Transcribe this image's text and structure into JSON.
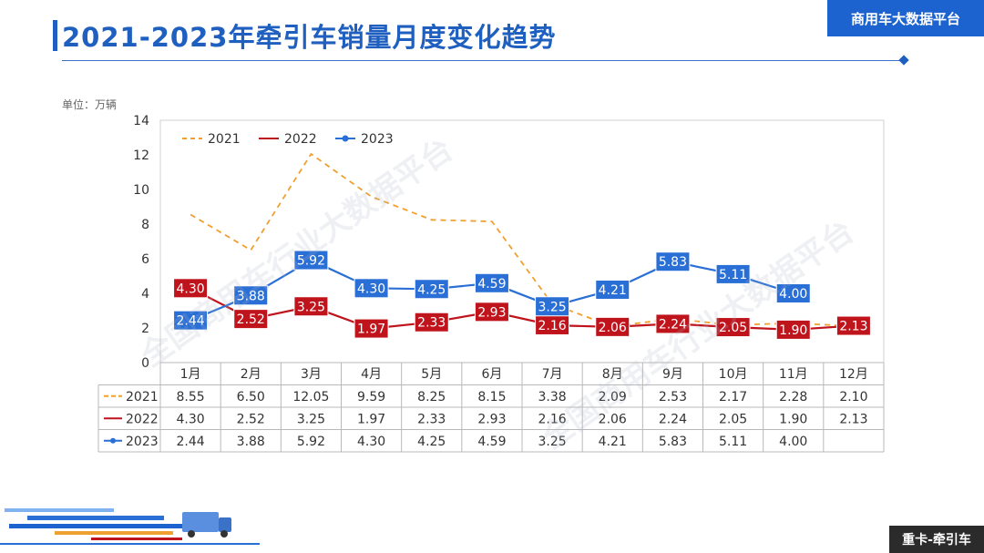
{
  "header": {
    "title": "2021-2023年牵引车销量月度变化趋势",
    "brand": "商用车大数据平台",
    "unit_label": "单位：万辆",
    "footer_tag": "重卡-牵引车",
    "watermark": "全国商用车行业大数据平台"
  },
  "colors": {
    "accent": "#1f5fbf",
    "s2021": "#f0a030",
    "s2022": "#c0141c",
    "s2023": "#2a6fd6"
  },
  "chart_data": {
    "type": "line",
    "title": "2021-2023年牵引车销量月度变化趋势",
    "ylabel": "万辆",
    "ylim": [
      0,
      14
    ],
    "yticks": [
      "0",
      "2",
      "4",
      "6",
      "8",
      "10",
      "12",
      "14"
    ],
    "grid": false,
    "legend": "top-left",
    "categories": [
      "1月",
      "2月",
      "3月",
      "4月",
      "5月",
      "6月",
      "7月",
      "8月",
      "9月",
      "10月",
      "11月",
      "12月"
    ],
    "series": [
      {
        "name": "2021",
        "style": "dashed",
        "labeled": false,
        "values": [
          8.55,
          6.5,
          12.05,
          9.59,
          8.25,
          8.15,
          3.38,
          2.09,
          2.53,
          2.17,
          2.28,
          2.1
        ],
        "table": [
          "8.55",
          "6.50",
          "12.05",
          "9.59",
          "8.25",
          "8.15",
          "3.38",
          "2.09",
          "2.53",
          "2.17",
          "2.28",
          "2.10"
        ]
      },
      {
        "name": "2022",
        "style": "solid",
        "labeled": true,
        "values": [
          4.3,
          2.52,
          3.25,
          1.97,
          2.33,
          2.93,
          2.16,
          2.06,
          2.24,
          2.05,
          1.9,
          2.13
        ],
        "table": [
          "4.30",
          "2.52",
          "3.25",
          "1.97",
          "2.33",
          "2.93",
          "2.16",
          "2.06",
          "2.24",
          "2.05",
          "1.90",
          "2.13"
        ]
      },
      {
        "name": "2023",
        "style": "marker",
        "labeled": true,
        "values": [
          2.44,
          3.88,
          5.92,
          4.3,
          4.25,
          4.59,
          3.25,
          4.21,
          5.83,
          5.11,
          4.0,
          null
        ],
        "table": [
          "2.44",
          "3.88",
          "5.92",
          "4.30",
          "4.25",
          "4.59",
          "3.25",
          "4.21",
          "5.83",
          "5.11",
          "4.00",
          ""
        ]
      }
    ]
  }
}
